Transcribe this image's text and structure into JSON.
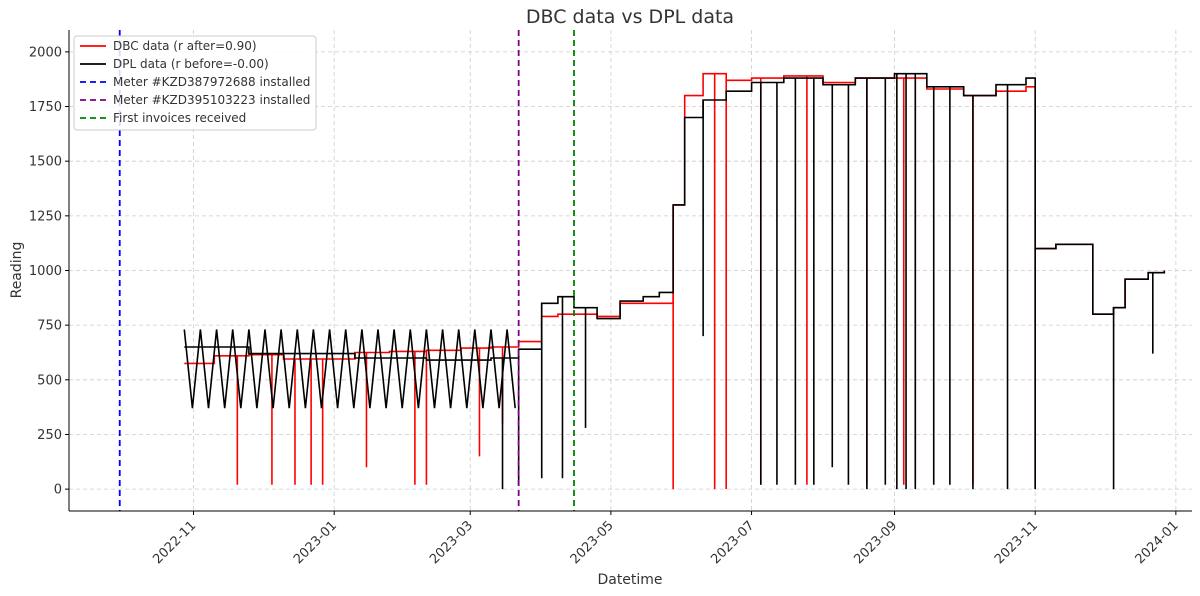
{
  "chart_data": {
    "type": "line",
    "title": "DBC data vs DPL data",
    "xlabel": "Datetime",
    "ylabel": "Reading",
    "xlim": [
      "2022-09-08",
      "2024-01-08"
    ],
    "ylim": [
      -100,
      2100
    ],
    "x_ticks": [
      "2022-11",
      "2023-01",
      "2023-03",
      "2023-05",
      "2023-07",
      "2023-09",
      "2023-11",
      "2024-01"
    ],
    "y_ticks": [
      0,
      250,
      500,
      750,
      1000,
      1250,
      1500,
      1750,
      2000
    ],
    "grid": true,
    "legend_position": "top-left",
    "series": [
      {
        "name": "DBC data (r after=0.90)",
        "color": "#ff0000",
        "x": [
          "2022-10-28",
          "2022-11-10",
          "2022-11-25",
          "2022-12-10",
          "2022-12-25",
          "2023-01-10",
          "2023-01-25",
          "2023-02-10",
          "2023-02-25",
          "2023-03-10",
          "2023-03-22",
          "2023-04-01",
          "2023-04-08",
          "2023-04-15",
          "2023-04-25",
          "2023-05-05",
          "2023-05-15",
          "2023-05-22",
          "2023-05-28",
          "2023-06-02",
          "2023-06-10",
          "2023-06-20",
          "2023-07-01",
          "2023-07-15",
          "2023-08-01",
          "2023-08-15",
          "2023-09-01",
          "2023-09-15",
          "2023-10-01",
          "2023-10-15",
          "2023-10-28",
          "2023-11-01",
          "2023-11-10",
          "2023-11-23",
          "2023-11-26",
          "2023-12-05",
          "2023-12-10",
          "2023-12-20",
          "2023-12-27"
        ],
        "y": [
          575,
          610,
          615,
          595,
          595,
          625,
          630,
          635,
          645,
          650,
          675,
          790,
          800,
          800,
          790,
          850,
          850,
          850,
          1300,
          1800,
          1900,
          1870,
          1880,
          1890,
          1860,
          1880,
          1880,
          1830,
          1800,
          1820,
          1840,
          1100,
          1120,
          1120,
          800,
          830,
          960,
          990,
          1000
        ],
        "drops": [
          [
            "2022-11-20",
            20
          ],
          [
            "2022-12-05",
            20
          ],
          [
            "2022-12-15",
            20
          ],
          [
            "2022-12-22",
            20
          ],
          [
            "2022-12-27",
            20
          ],
          [
            "2023-01-15",
            100
          ],
          [
            "2023-02-05",
            20
          ],
          [
            "2023-02-10",
            20
          ],
          [
            "2023-03-05",
            150
          ],
          [
            "2023-03-15",
            300
          ],
          [
            "2023-05-28",
            0
          ],
          [
            "2023-06-15",
            0
          ],
          [
            "2023-06-20",
            0
          ],
          [
            "2023-07-05",
            20
          ],
          [
            "2023-07-25",
            20
          ],
          [
            "2023-08-20",
            20
          ],
          [
            "2023-09-05",
            20
          ],
          [
            "2023-09-10",
            20
          ],
          [
            "2023-10-05",
            20
          ],
          [
            "2023-11-01",
            0
          ]
        ]
      },
      {
        "name": "DPL data (r before=-0.00)",
        "color": "#000000",
        "x": [
          "2022-10-28",
          "2022-11-10",
          "2022-11-25",
          "2022-12-10",
          "2022-12-25",
          "2023-01-10",
          "2023-01-25",
          "2023-02-10",
          "2023-02-25",
          "2023-03-10",
          "2023-03-22",
          "2023-04-01",
          "2023-04-08",
          "2023-04-15",
          "2023-04-25",
          "2023-05-05",
          "2023-05-15",
          "2023-05-22",
          "2023-05-28",
          "2023-06-02",
          "2023-06-10",
          "2023-06-20",
          "2023-07-01",
          "2023-07-15",
          "2023-08-01",
          "2023-08-15",
          "2023-09-01",
          "2023-09-15",
          "2023-10-01",
          "2023-10-15",
          "2023-10-28",
          "2023-11-01",
          "2023-11-10",
          "2023-11-23",
          "2023-11-26",
          "2023-12-05",
          "2023-12-10",
          "2023-12-20",
          "2023-12-27"
        ],
        "y": [
          650,
          650,
          620,
          620,
          620,
          600,
          600,
          590,
          590,
          600,
          640,
          850,
          880,
          830,
          780,
          860,
          880,
          900,
          1300,
          1700,
          1780,
          1820,
          1860,
          1880,
          1850,
          1880,
          1900,
          1840,
          1800,
          1850,
          1880,
          1100,
          1120,
          1120,
          800,
          830,
          960,
          990,
          1000
        ],
        "oscillation": {
          "from": "2022-10-28",
          "to": "2023-03-22",
          "low": 370,
          "high": 730
        },
        "drops": [
          [
            "2023-03-15",
            0
          ],
          [
            "2023-03-22",
            20
          ],
          [
            "2023-04-01",
            50
          ],
          [
            "2023-04-10",
            50
          ],
          [
            "2023-04-20",
            280
          ],
          [
            "2023-06-10",
            700
          ],
          [
            "2023-07-05",
            20
          ],
          [
            "2023-07-12",
            20
          ],
          [
            "2023-07-20",
            20
          ],
          [
            "2023-07-28",
            20
          ],
          [
            "2023-08-05",
            100
          ],
          [
            "2023-08-12",
            20
          ],
          [
            "2023-08-20",
            0
          ],
          [
            "2023-08-28",
            20
          ],
          [
            "2023-09-02",
            0
          ],
          [
            "2023-09-06",
            0
          ],
          [
            "2023-09-10",
            0
          ],
          [
            "2023-09-18",
            20
          ],
          [
            "2023-09-25",
            20
          ],
          [
            "2023-10-05",
            0
          ],
          [
            "2023-10-20",
            0
          ],
          [
            "2023-11-01",
            0
          ],
          [
            "2023-12-05",
            0
          ],
          [
            "2023-12-22",
            620
          ]
        ]
      }
    ],
    "vlines": [
      {
        "name": "Meter #KZD387972688 installed",
        "x": "2022-09-30",
        "color": "#0000ff"
      },
      {
        "name": "Meter #KZD395103223 installed",
        "x": "2023-03-22",
        "color": "#800080"
      },
      {
        "name": "First invoices received",
        "x": "2023-04-15",
        "color": "#008000"
      }
    ]
  }
}
